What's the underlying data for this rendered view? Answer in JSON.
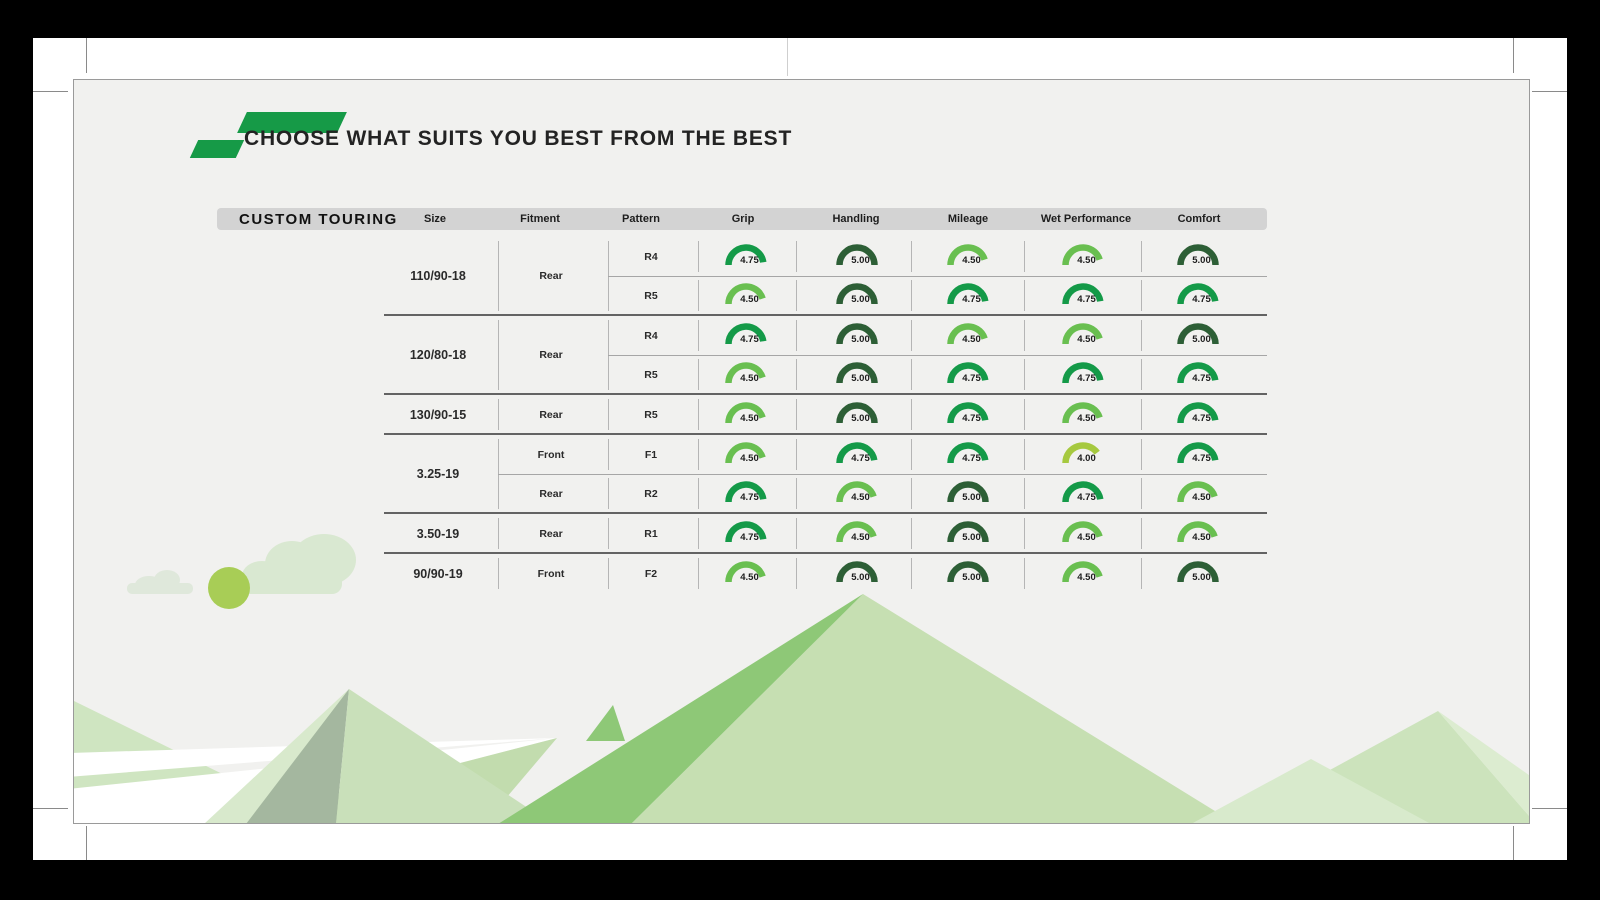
{
  "page": {
    "title": "CHOOSE WHAT SUITS YOU BEST FROM THE BEST"
  },
  "table": {
    "category": "CUSTOM TOURING",
    "columns": [
      "Size",
      "Fitment",
      "Pattern",
      "Grip",
      "Handling",
      "Mileage",
      "Wet Performance",
      "Comfort"
    ],
    "groups": [
      {
        "size": "110/90-18",
        "fitment": "Rear",
        "rows": [
          {
            "pattern": "R4",
            "values": [
              4.75,
              5.0,
              4.5,
              4.5,
              5.0
            ]
          },
          {
            "pattern": "R5",
            "values": [
              4.5,
              5.0,
              4.75,
              4.75,
              4.75
            ]
          }
        ]
      },
      {
        "size": "120/80-18",
        "fitment": "Rear",
        "rows": [
          {
            "pattern": "R4",
            "values": [
              4.75,
              5.0,
              4.5,
              4.5,
              5.0
            ]
          },
          {
            "pattern": "R5",
            "values": [
              4.5,
              5.0,
              4.75,
              4.75,
              4.75
            ]
          }
        ]
      },
      {
        "size": "130/90-15",
        "fitment": "Rear",
        "rows": [
          {
            "pattern": "R5",
            "values": [
              4.5,
              5.0,
              4.75,
              4.5,
              4.75
            ]
          }
        ]
      },
      {
        "size": "3.25-19",
        "fitment": null,
        "rows": [
          {
            "fitment": "Front",
            "pattern": "F1",
            "values": [
              4.5,
              4.75,
              4.75,
              4.0,
              4.75
            ]
          },
          {
            "fitment": "Rear",
            "pattern": "R2",
            "values": [
              4.75,
              4.5,
              5.0,
              4.75,
              4.5
            ]
          }
        ]
      },
      {
        "size": "3.50-19",
        "fitment": "Rear",
        "rows": [
          {
            "pattern": "R1",
            "values": [
              4.75,
              4.5,
              5.0,
              4.5,
              4.5
            ]
          }
        ]
      },
      {
        "size": "90/90-19",
        "fitment": "Front",
        "rows": [
          {
            "pattern": "F2",
            "values": [
              4.5,
              5.0,
              5.0,
              4.5,
              5.0
            ]
          }
        ]
      }
    ],
    "value_colors": {
      "5.00": "#2d5f36",
      "4.75": "#149a48",
      "4.50": "#69bf50",
      "4.00": "#a6c93f"
    }
  },
  "brand": {
    "accent_green": "#169a47"
  },
  "chart_data": {
    "type": "table",
    "title": "CHOOSE WHAT SUITS YOU BEST FROM THE BEST",
    "category": "CUSTOM TOURING",
    "columns": [
      "Size",
      "Fitment",
      "Pattern",
      "Grip",
      "Handling",
      "Mileage",
      "Wet Performance",
      "Comfort"
    ],
    "rows": [
      [
        "110/90-18",
        "Rear",
        "R4",
        4.75,
        5.0,
        4.5,
        4.5,
        5.0
      ],
      [
        "110/90-18",
        "Rear",
        "R5",
        4.5,
        5.0,
        4.75,
        4.75,
        4.75
      ],
      [
        "120/80-18",
        "Rear",
        "R4",
        4.75,
        5.0,
        4.5,
        4.5,
        5.0
      ],
      [
        "120/80-18",
        "Rear",
        "R5",
        4.5,
        5.0,
        4.75,
        4.75,
        4.75
      ],
      [
        "130/90-15",
        "Rear",
        "R5",
        4.5,
        5.0,
        4.75,
        4.5,
        4.75
      ],
      [
        "3.25-19",
        "Front",
        "F1",
        4.5,
        4.75,
        4.75,
        4.0,
        4.75
      ],
      [
        "3.25-19",
        "Rear",
        "R2",
        4.75,
        4.5,
        5.0,
        4.75,
        4.5
      ],
      [
        "3.50-19",
        "Rear",
        "R1",
        4.75,
        4.5,
        5.0,
        4.5,
        4.5
      ],
      [
        "90/90-19",
        "Front",
        "F2",
        4.5,
        5.0,
        5.0,
        4.5,
        5.0
      ]
    ],
    "gauge_type": "semicircle-arc",
    "gauge_scale": [
      0,
      5
    ]
  }
}
